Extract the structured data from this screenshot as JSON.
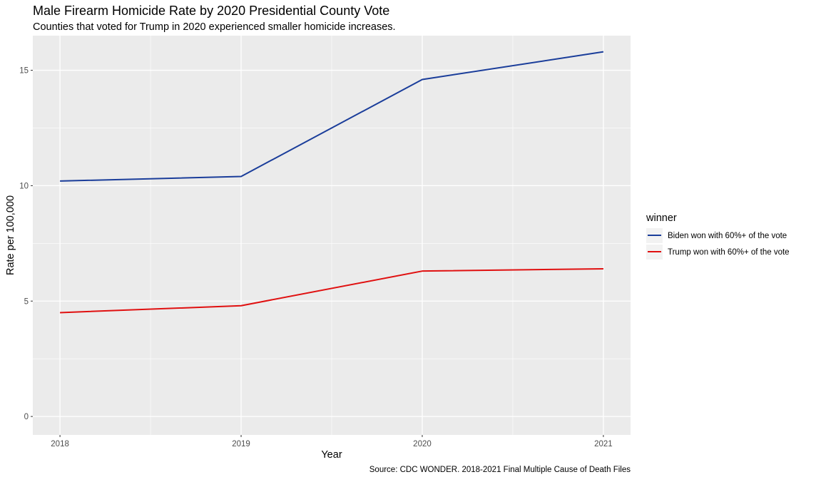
{
  "chart_data": {
    "type": "line",
    "title": "Male Firearm Homicide Rate by 2020 Presidential County Vote",
    "subtitle": "Counties that voted for Trump in 2020 experienced smaller homicide increases.",
    "xlabel": "Year",
    "ylabel": "Rate per 100,000",
    "caption": "Source: CDC WONDER. 2018-2021 Final Multiple Cause of Death Files",
    "x": [
      "2018",
      "2019",
      "2020",
      "2021"
    ],
    "xlim": [
      2017.85,
      2021.15
    ],
    "ylim": [
      -0.8,
      16.5
    ],
    "yticks": [
      0,
      5,
      10,
      15
    ],
    "yminor": [
      2.5,
      7.5,
      12.5
    ],
    "xminor": [
      2018.5,
      2019.5,
      2020.5
    ],
    "grid": true,
    "legend": {
      "title": "winner",
      "position": "right"
    },
    "series": [
      {
        "name": "Biden won with 60%+ of the vote",
        "color": "#1a3d9a",
        "values": [
          10.2,
          10.4,
          14.6,
          15.8
        ]
      },
      {
        "name": "Trump won with 60%+ of the vote",
        "color": "#e01010",
        "values": [
          4.5,
          4.8,
          6.3,
          6.4
        ]
      }
    ],
    "panel_background": "#ebebeb",
    "grid_color": "#ffffff"
  }
}
